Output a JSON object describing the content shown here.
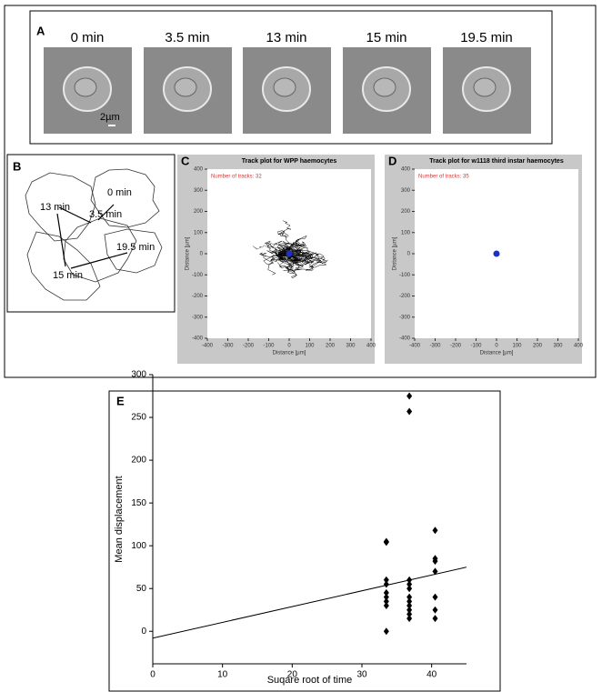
{
  "panel_a": {
    "letter": "A",
    "times": [
      "0 min",
      "3.5 min",
      "13 min",
      "15 min",
      "19.5 min"
    ],
    "scale_bar": "2µm"
  },
  "panel_b": {
    "letter": "B",
    "times": [
      "0 min",
      "3.5 min",
      "13 min",
      "15 min",
      "19.5 min"
    ]
  },
  "chart_data": [
    {
      "type": "track",
      "panel": "C",
      "title": "Track plot for WPP haemocytes",
      "annotation": "Number of tracks: 32",
      "x_label": "Distance [µm]",
      "y_label": "Distance [µm]",
      "xlim": [
        -400,
        400
      ],
      "xticks": [
        -400,
        -300,
        -200,
        -100,
        0,
        100,
        200,
        300,
        400
      ],
      "ylim": [
        -400,
        400
      ],
      "yticks": [
        -400,
        -300,
        -200,
        -100,
        0,
        100,
        200,
        300,
        400
      ],
      "color": "#000000",
      "center_color": "#1f2fbf"
    },
    {
      "type": "track",
      "panel": "D",
      "title": "Track plot for w1118 third instar haemocytes",
      "annotation": "Number of tracks: 35",
      "x_label": "Distance [µm]",
      "y_label": "Distance [µm]",
      "xlim": [
        -400,
        400
      ],
      "xticks": [
        -400,
        -300,
        -200,
        -100,
        0,
        100,
        200,
        300,
        400
      ],
      "ylim": [
        -400,
        400
      ],
      "yticks": [
        -400,
        -300,
        -200,
        -100,
        0,
        100,
        200,
        300,
        400
      ],
      "color": "#000000",
      "center_color": "#1f2fbf"
    },
    {
      "type": "scatter",
      "panel": "E",
      "x_label": "Suqare root of time",
      "y_label": "Mean displacement",
      "x": [
        33.5,
        33.5,
        33.5,
        33.5,
        33.5,
        33.5,
        33.5,
        33.5,
        33.5,
        36.8,
        36.8,
        36.8,
        36.8,
        36.8,
        36.8,
        36.8,
        36.8,
        36.8,
        36.8,
        36.8,
        40.5,
        40.5,
        40.5,
        40.5,
        40.5,
        40.5,
        40.5
      ],
      "y": [
        105,
        104,
        60,
        55,
        45,
        40,
        35,
        30,
        0,
        275,
        257,
        60,
        55,
        50,
        40,
        35,
        30,
        25,
        20,
        15,
        118,
        85,
        82,
        70,
        40,
        25,
        15
      ],
      "trendline": {
        "x": [
          0,
          45
        ],
        "y": [
          -8,
          75
        ]
      },
      "xlim": [
        0,
        45
      ],
      "xticks": [
        0,
        10,
        20,
        30,
        40
      ],
      "ylim": [
        -38,
        300
      ],
      "yticks": [
        0,
        50,
        100,
        150,
        200,
        250,
        300
      ],
      "color": "#000000"
    }
  ]
}
